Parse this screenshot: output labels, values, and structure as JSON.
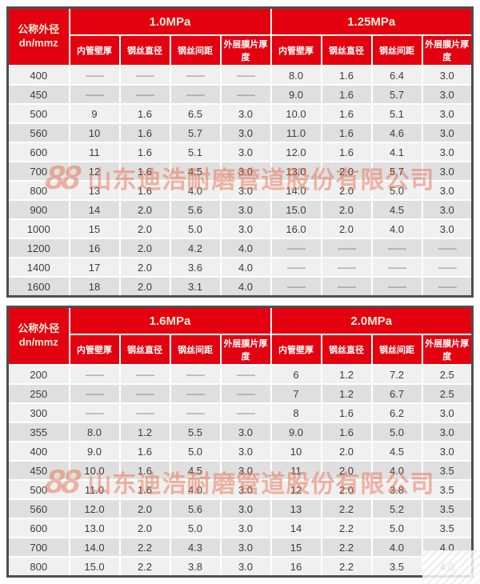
{
  "row_header": {
    "diameter_label": "公称外径",
    "diameter_unit": "dn/mmz",
    "columns": [
      "内管壁厚",
      "钢丝直径",
      "钢丝间距",
      "外层膜片厚度"
    ]
  },
  "dash": "——",
  "watermark": {
    "logo_text": "88",
    "text": "山东迪浩耐磨管道股份有限公司",
    "color": "#e67050"
  },
  "colors": {
    "header_red": "#e3000f",
    "header_text_cream": "#ffeed6",
    "header_text_white": "#ffffff",
    "row_light": "#f0f0f0",
    "row_dark": "#dfdfdf",
    "border_dark": "#4f4f4f"
  },
  "tables": [
    {
      "pressures": [
        "1.0MPa",
        "1.25MPa"
      ],
      "rows": [
        {
          "dn": "400",
          "values": [
            "——",
            "——",
            "——",
            "——",
            "8.0",
            "1.6",
            "6.4",
            "3.0"
          ]
        },
        {
          "dn": "450",
          "values": [
            "——",
            "——",
            "——",
            "——",
            "9.0",
            "1.6",
            "5.7",
            "3.0"
          ]
        },
        {
          "dn": "500",
          "values": [
            "9",
            "1.6",
            "6.5",
            "3.0",
            "10.0",
            "1.6",
            "5.1",
            "3.0"
          ]
        },
        {
          "dn": "560",
          "values": [
            "10",
            "1.6",
            "5.7",
            "3.0",
            "11.0",
            "1.6",
            "4.6",
            "3.0"
          ]
        },
        {
          "dn": "600",
          "values": [
            "11",
            "1.6",
            "5.1",
            "3.0",
            "12.0",
            "1.6",
            "4.1",
            "3.0"
          ]
        },
        {
          "dn": "700",
          "values": [
            "12",
            "1.6",
            "4.5",
            "3.0",
            "13.0",
            "2.0",
            "5.7",
            "3.0"
          ]
        },
        {
          "dn": "800",
          "values": [
            "13",
            "1.6",
            "4.0",
            "3.0",
            "14.0",
            "2.0",
            "5.0",
            "3.0"
          ]
        },
        {
          "dn": "900",
          "values": [
            "14",
            "2.0",
            "5.6",
            "3.0",
            "15.0",
            "2.0",
            "4.5",
            "3.0"
          ]
        },
        {
          "dn": "1000",
          "values": [
            "15",
            "2.0",
            "5.0",
            "3.0",
            "16.0",
            "2.0",
            "4.0",
            "3.0"
          ]
        },
        {
          "dn": "1200",
          "values": [
            "16",
            "2.0",
            "4.2",
            "4.0",
            "——",
            "——",
            "——",
            "——"
          ]
        },
        {
          "dn": "1400",
          "values": [
            "17",
            "2.0",
            "3.6",
            "4.0",
            "——",
            "——",
            "——",
            "——"
          ]
        },
        {
          "dn": "1600",
          "values": [
            "18",
            "2.0",
            "3.1",
            "4.0",
            "——",
            "——",
            "——",
            "——"
          ]
        }
      ]
    },
    {
      "pressures": [
        "1.6MPa",
        "2.0MPa"
      ],
      "rows": [
        {
          "dn": "200",
          "values": [
            "——",
            "——",
            "——",
            "——",
            "6",
            "1.2",
            "7.2",
            "2.5"
          ]
        },
        {
          "dn": "250",
          "values": [
            "——",
            "——",
            "——",
            "——",
            "7",
            "1.2",
            "6.7",
            "2.5"
          ]
        },
        {
          "dn": "300",
          "values": [
            "——",
            "——",
            "——",
            "——",
            "8",
            "1.6",
            "6.2",
            "3.0"
          ]
        },
        {
          "dn": "355",
          "values": [
            "8.0",
            "1.2",
            "5.5",
            "3.0",
            "9.0",
            "1.6",
            "5.0",
            "3.0"
          ]
        },
        {
          "dn": "400",
          "values": [
            "9.0",
            "1.6",
            "5.0",
            "3.0",
            "10",
            "2.0",
            "4.5",
            "3.0"
          ]
        },
        {
          "dn": "450",
          "values": [
            "10.0",
            "1.6",
            "4.5",
            "3.0",
            "11",
            "2.0",
            "4.0",
            "3.5"
          ]
        },
        {
          "dn": "500",
          "values": [
            "11.0",
            "1.6",
            "4.0",
            "3.0",
            "12",
            "2.0",
            "3.8",
            "3.5"
          ]
        },
        {
          "dn": "560",
          "values": [
            "12.0",
            "2.0",
            "5.6",
            "3.0",
            "13",
            "2.2",
            "5.2",
            "3.5"
          ]
        },
        {
          "dn": "600",
          "values": [
            "13.0",
            "2.0",
            "5.0",
            "3.0",
            "14",
            "2.2",
            "5.0",
            "3.5"
          ]
        },
        {
          "dn": "700",
          "values": [
            "14.0",
            "2.2",
            "4.3",
            "3.0",
            "15",
            "2.2",
            "4.0",
            "4.0"
          ]
        },
        {
          "dn": "800",
          "values": [
            "15.0",
            "2.2",
            "3.8",
            "3.0",
            "16",
            "2.2",
            "3.5",
            "4.0"
          ]
        }
      ]
    }
  ]
}
